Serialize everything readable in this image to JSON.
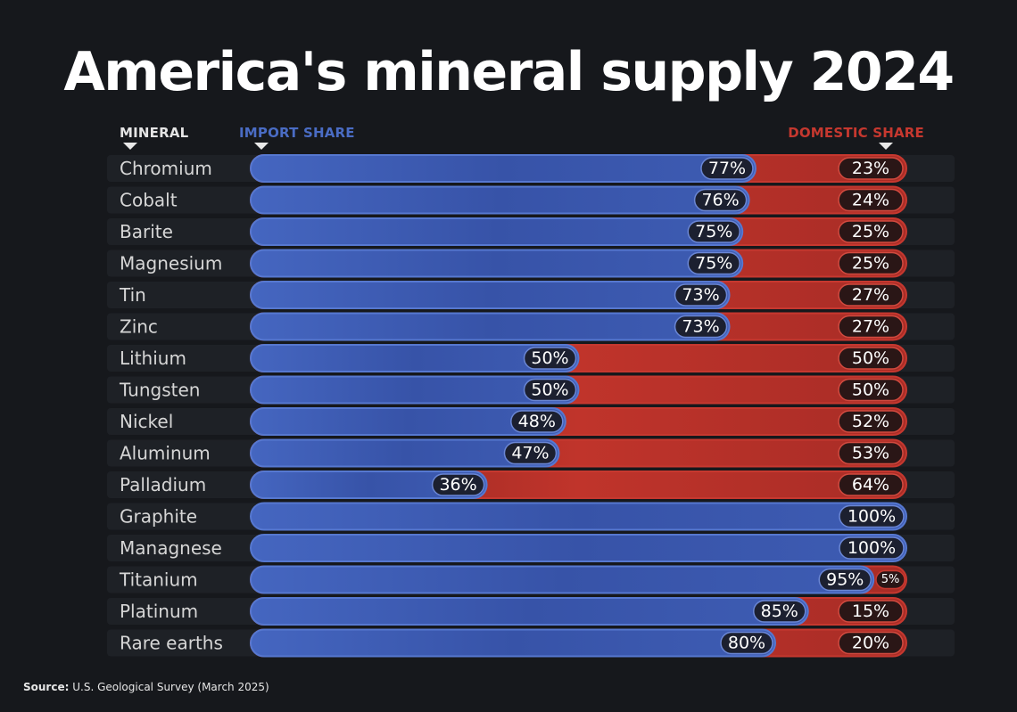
{
  "title": "America's mineral supply 2024",
  "headers": {
    "mineral": "MINERAL",
    "import": "IMPORT SHARE",
    "domestic": "DOMESTIC SHARE"
  },
  "source": {
    "label": "Source:",
    "text": "U.S. Geological Survey (March 2025)"
  },
  "colors": {
    "import": "#3f5fb4",
    "domestic": "#b5302a",
    "background": "#16181c"
  },
  "chart_data": {
    "type": "bar",
    "orientation": "horizontal",
    "stacked": true,
    "title": "America's mineral supply 2024",
    "categories": [
      "Chromium",
      "Cobalt",
      "Barite",
      "Magnesium",
      "Tin",
      "Zinc",
      "Lithium",
      "Tungsten",
      "Nickel",
      "Aluminum",
      "Palladium",
      "Graphite",
      "Managnese",
      "Titanium",
      "Platinum",
      "Rare earths"
    ],
    "series": [
      {
        "name": "IMPORT SHARE",
        "values": [
          77,
          76,
          75,
          75,
          73,
          73,
          50,
          50,
          48,
          47,
          36,
          100,
          100,
          95,
          85,
          80
        ]
      },
      {
        "name": "DOMESTIC SHARE",
        "values": [
          23,
          24,
          25,
          25,
          27,
          27,
          50,
          50,
          52,
          53,
          64,
          0,
          0,
          5,
          15,
          20
        ]
      }
    ],
    "unit": "%",
    "xlim": [
      0,
      100
    ]
  }
}
